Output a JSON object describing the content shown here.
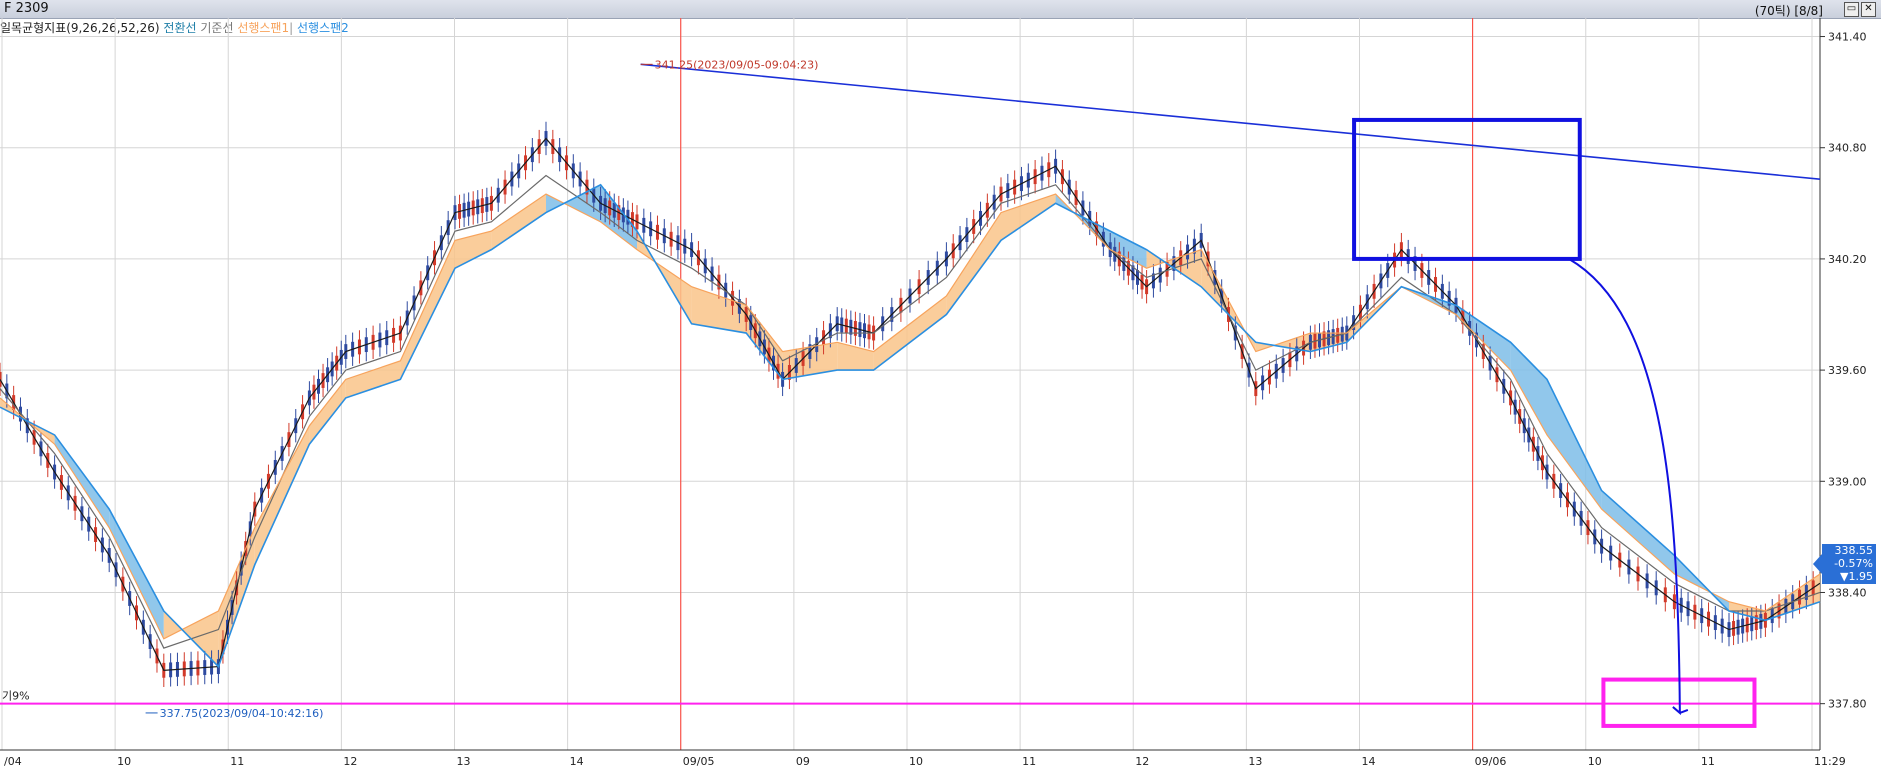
{
  "window": {
    "title": "F 2309",
    "info": "(70틱) [8/8]",
    "buttons": [
      "▭",
      "✕"
    ]
  },
  "legend": {
    "indicator": "일목균형지표(9,26,26,52,26)",
    "items": [
      {
        "label": "전환선",
        "color": "#1f7fa8"
      },
      {
        "label": "기준선",
        "color": "#888888"
      },
      {
        "label": "선행스팬1",
        "color": "#f7a35c"
      },
      {
        "label": "선행스팬2",
        "color": "#4aa3df"
      }
    ]
  },
  "price_tag": {
    "price": "338.55",
    "change_pct": "-0.57%",
    "change": "▼1.95"
  },
  "pct_label": "기9%",
  "colors": {
    "kumo_bull": "#f9c48a",
    "kumo_bear": "#7ebde8",
    "span2": "#2b8fe0",
    "tenkan": "#1a1a1a",
    "kijun": "#6a6a6a",
    "candle_up": "#d23a2a",
    "candle_down": "#2e4aa0",
    "trendline": "#1a2fd8",
    "support": "#ff22ee",
    "session": "#ff3b30",
    "grid": "#d5d5d5",
    "box": "#1010e0"
  },
  "chart_data": {
    "type": "line",
    "title": "일목균형지표(9,26,26,52,26)",
    "ylim": [
      337.55,
      341.5
    ],
    "y_ticks": [
      "341.40",
      "340.80",
      "340.20",
      "339.60",
      "339.00",
      "338.40",
      "337.80"
    ],
    "x_tick_labels": [
      "/04",
      "10",
      "11",
      "12",
      "13",
      "14",
      "09/05",
      "09",
      "10",
      "11",
      "12",
      "13",
      "14",
      "09/06",
      "10",
      "11",
      "11:29"
    ],
    "grid": true,
    "series": [
      {
        "name": "전환선",
        "x": [
          0,
          3,
          6,
          9,
          12,
          14,
          17,
          19,
          22,
          25,
          27,
          30,
          33,
          35,
          38,
          41,
          43,
          46,
          48,
          52,
          55,
          58,
          61,
          63,
          66,
          69,
          72,
          74,
          77,
          80,
          83,
          85,
          88,
          92,
          95,
          97,
          100
        ],
        "values": [
          339.55,
          339.05,
          338.6,
          337.98,
          338.0,
          338.85,
          339.45,
          339.7,
          339.8,
          340.45,
          340.5,
          340.85,
          340.5,
          340.4,
          340.25,
          339.9,
          339.55,
          339.85,
          339.8,
          340.2,
          340.55,
          340.7,
          340.25,
          340.05,
          340.3,
          339.5,
          339.75,
          339.8,
          340.25,
          339.95,
          339.45,
          339.05,
          338.65,
          338.35,
          338.2,
          338.25,
          338.45
        ]
      },
      {
        "name": "기준선",
        "x": [
          0,
          3,
          6,
          9,
          12,
          14,
          17,
          19,
          22,
          25,
          27,
          30,
          33,
          35,
          38,
          41,
          43,
          46,
          48,
          52,
          55,
          58,
          61,
          63,
          66,
          69,
          72,
          74,
          77,
          80,
          83,
          85,
          88,
          92,
          95,
          97,
          100
        ],
        "values": [
          339.5,
          339.15,
          338.7,
          338.1,
          338.2,
          338.7,
          339.35,
          339.6,
          339.7,
          340.35,
          340.4,
          340.65,
          340.45,
          340.3,
          340.15,
          339.95,
          339.65,
          339.8,
          339.8,
          340.1,
          340.5,
          340.6,
          340.25,
          340.1,
          340.2,
          339.6,
          339.75,
          339.8,
          340.1,
          339.9,
          339.55,
          339.15,
          338.75,
          338.45,
          338.3,
          338.3,
          338.4
        ]
      },
      {
        "name": "선행스팬1",
        "x": [
          0,
          3,
          6,
          9,
          12,
          14,
          17,
          19,
          22,
          25,
          27,
          30,
          33,
          35,
          38,
          41,
          43,
          46,
          48,
          52,
          55,
          58,
          61,
          63,
          66,
          69,
          72,
          74,
          77,
          80,
          83,
          85,
          88,
          92,
          95,
          97,
          100
        ],
        "values": [
          339.45,
          339.2,
          338.75,
          338.15,
          338.3,
          338.75,
          339.3,
          339.55,
          339.65,
          340.3,
          340.35,
          340.55,
          340.4,
          340.25,
          340.05,
          339.95,
          339.7,
          339.75,
          339.7,
          340.0,
          340.45,
          340.55,
          340.25,
          340.15,
          340.25,
          339.7,
          339.8,
          339.8,
          340.05,
          339.9,
          339.6,
          339.25,
          338.85,
          338.5,
          338.35,
          338.3,
          338.5
        ]
      },
      {
        "name": "선행스팬2",
        "x": [
          0,
          3,
          6,
          9,
          12,
          14,
          17,
          19,
          22,
          25,
          27,
          30,
          33,
          35,
          38,
          41,
          43,
          46,
          48,
          52,
          55,
          58,
          61,
          63,
          66,
          69,
          72,
          74,
          77,
          80,
          83,
          85,
          88,
          92,
          95,
          97,
          100
        ],
        "values": [
          339.4,
          339.25,
          338.85,
          338.3,
          338.0,
          338.55,
          339.2,
          339.45,
          339.55,
          340.15,
          340.25,
          340.45,
          340.6,
          340.35,
          339.85,
          339.8,
          339.55,
          339.6,
          339.6,
          339.9,
          340.3,
          340.5,
          340.35,
          340.25,
          340.05,
          339.75,
          339.7,
          339.75,
          340.05,
          339.95,
          339.75,
          339.55,
          338.95,
          338.6,
          338.3,
          338.25,
          338.35
        ]
      }
    ],
    "annotations": [
      {
        "text": "341.25(2023/09/05-09:04:23)",
        "x": 35.2,
        "y": 341.25,
        "color": "#c0392b"
      },
      {
        "text": "337.75(2023/09/04-10:42:16)",
        "x": 8.0,
        "y": 337.75,
        "color": "#1f5fbf"
      }
    ],
    "trendline": {
      "x": [
        35.2,
        100
      ],
      "y": [
        341.25,
        340.63
      ]
    },
    "support_level": 337.8
  }
}
